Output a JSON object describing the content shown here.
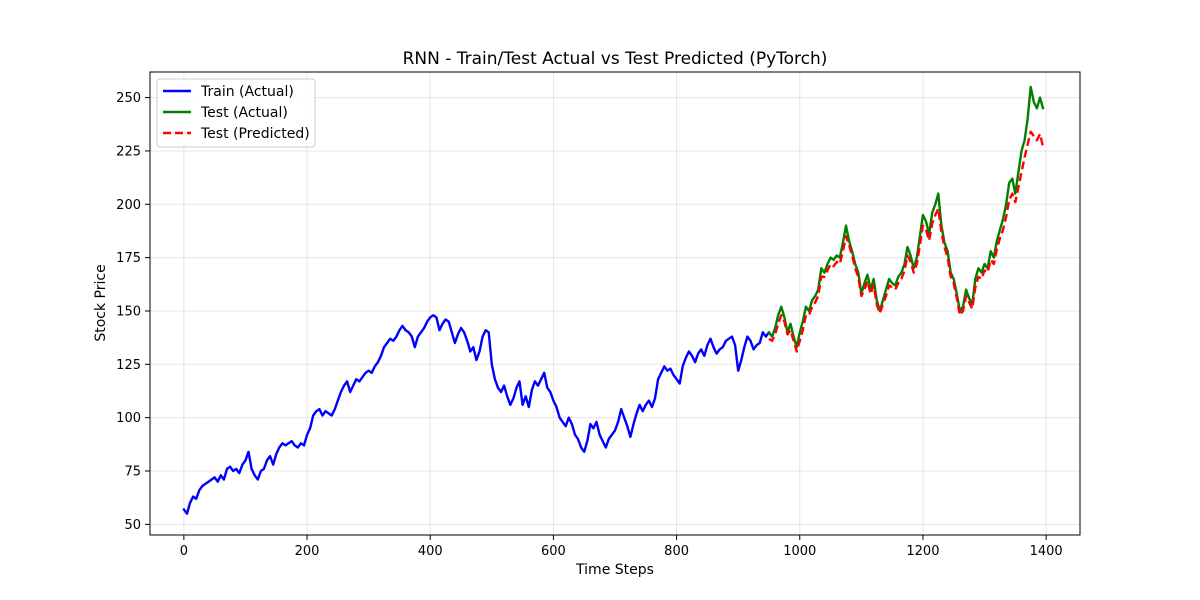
{
  "chart_data": {
    "type": "line",
    "title": "RNN - Train/Test Actual vs Test Predicted (PyTorch)",
    "xlabel": "Time Steps",
    "ylabel": "Stock Price",
    "xlim": [
      -55,
      1455
    ],
    "ylim": [
      45,
      262
    ],
    "xticks": [
      0,
      200,
      400,
      600,
      800,
      1000,
      1200,
      1400
    ],
    "yticks": [
      50,
      75,
      100,
      125,
      150,
      175,
      200,
      225,
      250
    ],
    "grid": true,
    "legend_position": "top-left",
    "series": [
      {
        "name": "Train (Actual)",
        "color": "#0000ff",
        "style": "solid",
        "x": [
          0,
          5,
          10,
          15,
          20,
          25,
          30,
          35,
          40,
          45,
          50,
          55,
          60,
          65,
          70,
          75,
          80,
          85,
          90,
          95,
          100,
          105,
          110,
          115,
          120,
          125,
          130,
          135,
          140,
          145,
          150,
          155,
          160,
          165,
          170,
          175,
          180,
          185,
          190,
          195,
          200,
          205,
          210,
          215,
          220,
          225,
          230,
          235,
          240,
          245,
          250,
          255,
          260,
          265,
          270,
          275,
          280,
          285,
          290,
          295,
          300,
          305,
          310,
          315,
          320,
          325,
          330,
          335,
          340,
          345,
          350,
          355,
          360,
          365,
          370,
          375,
          380,
          385,
          390,
          395,
          400,
          405,
          410,
          415,
          420,
          425,
          430,
          435,
          440,
          445,
          450,
          455,
          460,
          465,
          470,
          475,
          480,
          485,
          490,
          495,
          500,
          505,
          510,
          515,
          520,
          525,
          530,
          535,
          540,
          545,
          550,
          555,
          560,
          565,
          570,
          575,
          580,
          585,
          590,
          595,
          600,
          605,
          610,
          615,
          620,
          625,
          630,
          635,
          640,
          645,
          650,
          655,
          660,
          665,
          670,
          675,
          680,
          685,
          690,
          695,
          700,
          705,
          710,
          715,
          720,
          725,
          730,
          735,
          740,
          745,
          750,
          755,
          760,
          765,
          770,
          775,
          780,
          785,
          790,
          795,
          800,
          805,
          810,
          815,
          820,
          825,
          830,
          835,
          840,
          845,
          850,
          855,
          860,
          865,
          870,
          875,
          880,
          885,
          890,
          895,
          900,
          905,
          910,
          915,
          920,
          925,
          930,
          935,
          940,
          945,
          950
        ],
        "values": [
          57,
          55,
          60,
          63,
          62,
          66,
          68,
          69,
          70,
          71,
          72,
          70,
          73,
          71,
          76,
          77,
          75,
          76,
          74,
          78,
          80,
          84,
          76,
          73,
          71,
          75,
          76,
          80,
          82,
          78,
          83,
          86,
          88,
          87,
          88,
          89,
          87,
          86,
          88,
          87,
          92,
          95,
          101,
          103,
          104,
          101,
          103,
          102,
          101,
          104,
          108,
          112,
          115,
          117,
          112,
          115,
          118,
          117,
          119,
          121,
          122,
          121,
          124,
          126,
          129,
          133,
          135,
          137,
          136,
          138,
          141,
          143,
          141,
          140,
          138,
          133,
          138,
          140,
          142,
          145,
          147,
          148,
          147,
          141,
          144,
          146,
          145,
          140,
          135,
          139,
          142,
          140,
          136,
          131,
          133,
          127,
          131,
          138,
          141,
          140,
          125,
          118,
          114,
          112,
          115,
          110,
          106,
          109,
          114,
          117,
          106,
          110,
          105,
          113,
          117,
          115,
          118,
          121,
          114,
          112,
          108,
          105,
          100,
          98,
          96,
          100,
          97,
          92,
          90,
          86,
          84,
          89,
          97,
          95,
          98,
          92,
          89,
          86,
          90,
          92,
          94,
          98,
          104,
          100,
          96,
          91,
          97,
          102,
          106,
          103,
          106,
          108,
          105,
          109,
          118,
          121,
          124,
          122,
          123,
          120,
          118,
          116,
          124,
          128,
          131,
          129,
          126,
          130,
          132,
          129,
          134,
          137,
          133,
          130,
          132,
          133,
          136,
          137,
          138,
          134,
          122,
          127,
          133,
          138,
          136,
          132,
          134,
          135,
          140,
          138,
          140
        ]
      },
      {
        "name": "Test (Actual)",
        "color": "#008000",
        "style": "solid",
        "x": [
          950,
          955,
          960,
          965,
          970,
          975,
          980,
          985,
          990,
          995,
          1000,
          1005,
          1010,
          1015,
          1020,
          1025,
          1030,
          1035,
          1040,
          1045,
          1050,
          1055,
          1060,
          1065,
          1070,
          1075,
          1080,
          1085,
          1090,
          1095,
          1100,
          1105,
          1110,
          1115,
          1120,
          1125,
          1130,
          1135,
          1140,
          1145,
          1150,
          1155,
          1160,
          1165,
          1170,
          1175,
          1180,
          1185,
          1190,
          1195,
          1200,
          1205,
          1210,
          1215,
          1220,
          1225,
          1230,
          1235,
          1240,
          1245,
          1250,
          1255,
          1260,
          1265,
          1270,
          1275,
          1280,
          1285,
          1290,
          1295,
          1300,
          1305,
          1310,
          1315,
          1320,
          1325,
          1330,
          1335,
          1340,
          1345,
          1350,
          1355,
          1360,
          1365,
          1370,
          1375,
          1380,
          1385,
          1390,
          1395
        ],
        "values": [
          140,
          138,
          142,
          148,
          152,
          147,
          140,
          144,
          138,
          133,
          140,
          145,
          152,
          150,
          155,
          157,
          160,
          170,
          168,
          172,
          175,
          174,
          176,
          175,
          182,
          190,
          183,
          178,
          172,
          168,
          158,
          163,
          167,
          160,
          165,
          155,
          150,
          155,
          160,
          165,
          163,
          162,
          166,
          168,
          172,
          180,
          176,
          170,
          175,
          185,
          195,
          192,
          186,
          196,
          200,
          205,
          190,
          182,
          178,
          168,
          165,
          158,
          150,
          152,
          160,
          156,
          153,
          165,
          170,
          168,
          172,
          170,
          178,
          175,
          183,
          188,
          193,
          200,
          210,
          212,
          205,
          215,
          225,
          230,
          240,
          255,
          248,
          245,
          250,
          245
        ]
      },
      {
        "name": "Test (Predicted)",
        "color": "#ff0000",
        "style": "dashed",
        "x": [
          950,
          955,
          960,
          965,
          970,
          975,
          980,
          985,
          990,
          995,
          1000,
          1005,
          1010,
          1015,
          1020,
          1025,
          1030,
          1035,
          1040,
          1045,
          1050,
          1055,
          1060,
          1065,
          1070,
          1075,
          1080,
          1085,
          1090,
          1095,
          1100,
          1105,
          1110,
          1115,
          1120,
          1125,
          1130,
          1135,
          1140,
          1145,
          1150,
          1155,
          1160,
          1165,
          1170,
          1175,
          1180,
          1185,
          1190,
          1195,
          1200,
          1205,
          1210,
          1215,
          1220,
          1225,
          1230,
          1235,
          1240,
          1245,
          1250,
          1255,
          1260,
          1265,
          1270,
          1275,
          1280,
          1285,
          1290,
          1295,
          1300,
          1305,
          1310,
          1315,
          1320,
          1325,
          1330,
          1335,
          1340,
          1345,
          1350,
          1355,
          1360,
          1365,
          1370,
          1375,
          1380,
          1385,
          1390,
          1395
        ],
        "values": [
          137,
          136,
          139,
          144,
          148,
          145,
          139,
          141,
          136,
          131,
          136,
          141,
          148,
          148,
          152,
          154,
          157,
          166,
          166,
          169,
          172,
          171,
          173,
          172,
          178,
          185,
          181,
          176,
          170,
          166,
          157,
          160,
          164,
          158,
          162,
          153,
          149,
          153,
          157,
          162,
          161,
          160,
          163,
          165,
          169,
          176,
          173,
          168,
          172,
          181,
          190,
          188,
          183,
          191,
          195,
          198,
          187,
          180,
          175,
          166,
          163,
          156,
          148,
          150,
          157,
          154,
          151,
          161,
          166,
          165,
          169,
          168,
          174,
          172,
          179,
          184,
          188,
          194,
          202,
          205,
          201,
          208,
          215,
          222,
          228,
          234,
          232,
          230,
          233,
          227
        ]
      }
    ]
  }
}
